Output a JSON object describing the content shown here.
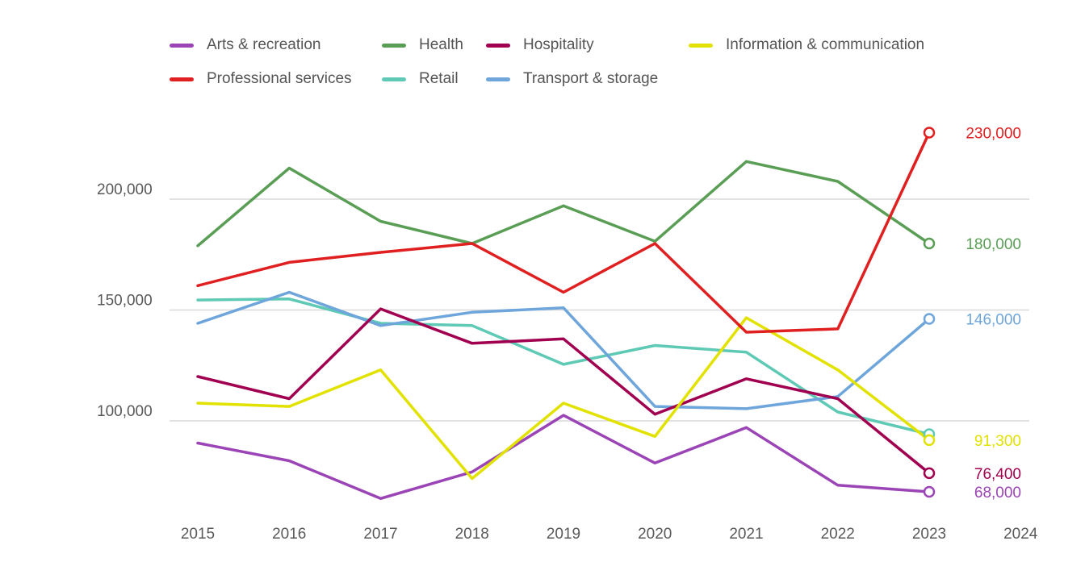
{
  "chart_data": {
    "type": "line",
    "title": "",
    "xlabel": "",
    "ylabel": "",
    "x": [
      "2015",
      "2016",
      "2017",
      "2018",
      "2019",
      "2020",
      "2021",
      "2022",
      "2023"
    ],
    "x_ticks": [
      "2015",
      "2016",
      "2017",
      "2018",
      "2019",
      "2020",
      "2021",
      "2022",
      "2023",
      "2024"
    ],
    "y_ticks": [
      {
        "value": 100000,
        "label": "100,000"
      },
      {
        "value": 150000,
        "label": "150,000"
      },
      {
        "value": 200000,
        "label": "200,000"
      }
    ],
    "ylim": [
      55000,
      240000
    ],
    "grid": true,
    "legend_position": "top",
    "series": [
      {
        "name": "Arts & recreation",
        "color": "#9b44b6",
        "values": [
          90000,
          82000,
          65000,
          77000,
          102500,
          81000,
          97000,
          71000,
          68000
        ],
        "end_label": "68,000"
      },
      {
        "name": "Health",
        "color": "#5a9e55",
        "values": [
          179000,
          214000,
          190000,
          180000,
          197000,
          181000,
          217000,
          208000,
          180000
        ],
        "end_label": "180,000"
      },
      {
        "name": "Hospitality",
        "color": "#a0004f",
        "values": [
          120000,
          110000,
          150500,
          135000,
          137000,
          103000,
          119000,
          110000,
          76400
        ],
        "end_label": "76,400"
      },
      {
        "name": "Information & communication",
        "color": "#e2e200",
        "values": [
          108000,
          106500,
          123000,
          74000,
          108000,
          93000,
          146500,
          123000,
          91300
        ],
        "end_label": "91,300"
      },
      {
        "name": "Professional services",
        "color": "#e02020",
        "values": [
          161000,
          171500,
          176000,
          180000,
          158000,
          180000,
          140000,
          141500,
          230000
        ],
        "end_label": "230,000"
      },
      {
        "name": "Retail",
        "color": "#5ec9b4",
        "values": [
          154500,
          155000,
          144000,
          143000,
          125500,
          134000,
          131000,
          104000,
          94000
        ],
        "end_label": ""
      },
      {
        "name": "Transport & storage",
        "color": "#6ea6dc",
        "values": [
          144000,
          158000,
          143000,
          149000,
          151000,
          106500,
          105500,
          111000,
          146000
        ],
        "end_label": "146,000"
      }
    ]
  }
}
